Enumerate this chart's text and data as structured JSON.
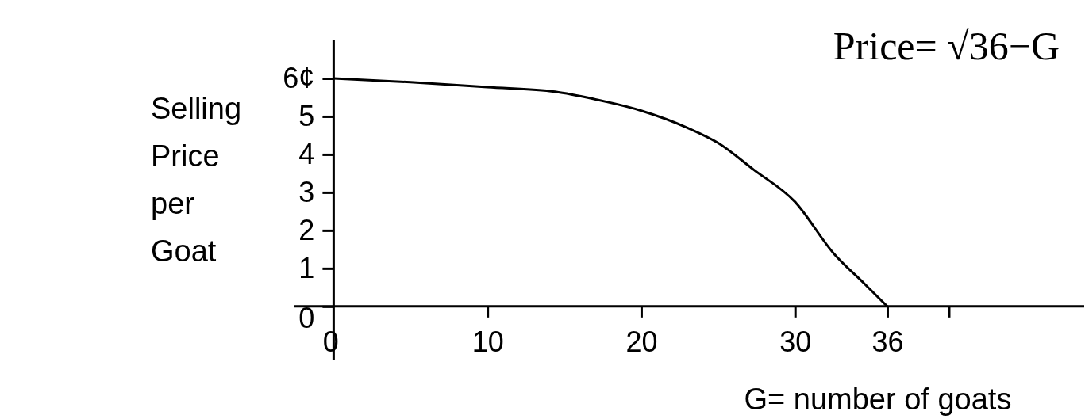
{
  "chart_data": {
    "type": "line",
    "xlabel": "G= number of goats",
    "ylabel": "Selling Price per Goat",
    "annotations": [
      "Price= √36−G"
    ],
    "x": [
      0,
      5,
      10,
      14.4,
      17,
      20,
      23,
      25,
      27.3,
      30,
      32.5,
      34.5,
      36
    ],
    "series": [
      {
        "color": "#000000",
        "values": [
          6,
          5.9,
          5.77,
          5.65,
          5.45,
          5.15,
          4.7,
          4.3,
          3.6,
          2.75,
          1.4,
          0.6,
          0
        ]
      }
    ],
    "xlim": [
      -2.6,
      48.8
    ],
    "ylim": [
      -1.4,
      7
    ],
    "xticks": [
      0,
      10,
      20,
      30,
      36,
      {
        "value": 40,
        "label": null
      }
    ],
    "yticks": [
      0,
      1,
      2,
      3,
      4,
      5,
      {
        "value": 6,
        "label": "6¢"
      }
    ],
    "grid": false,
    "marker": "none",
    "line_style": "solid"
  }
}
